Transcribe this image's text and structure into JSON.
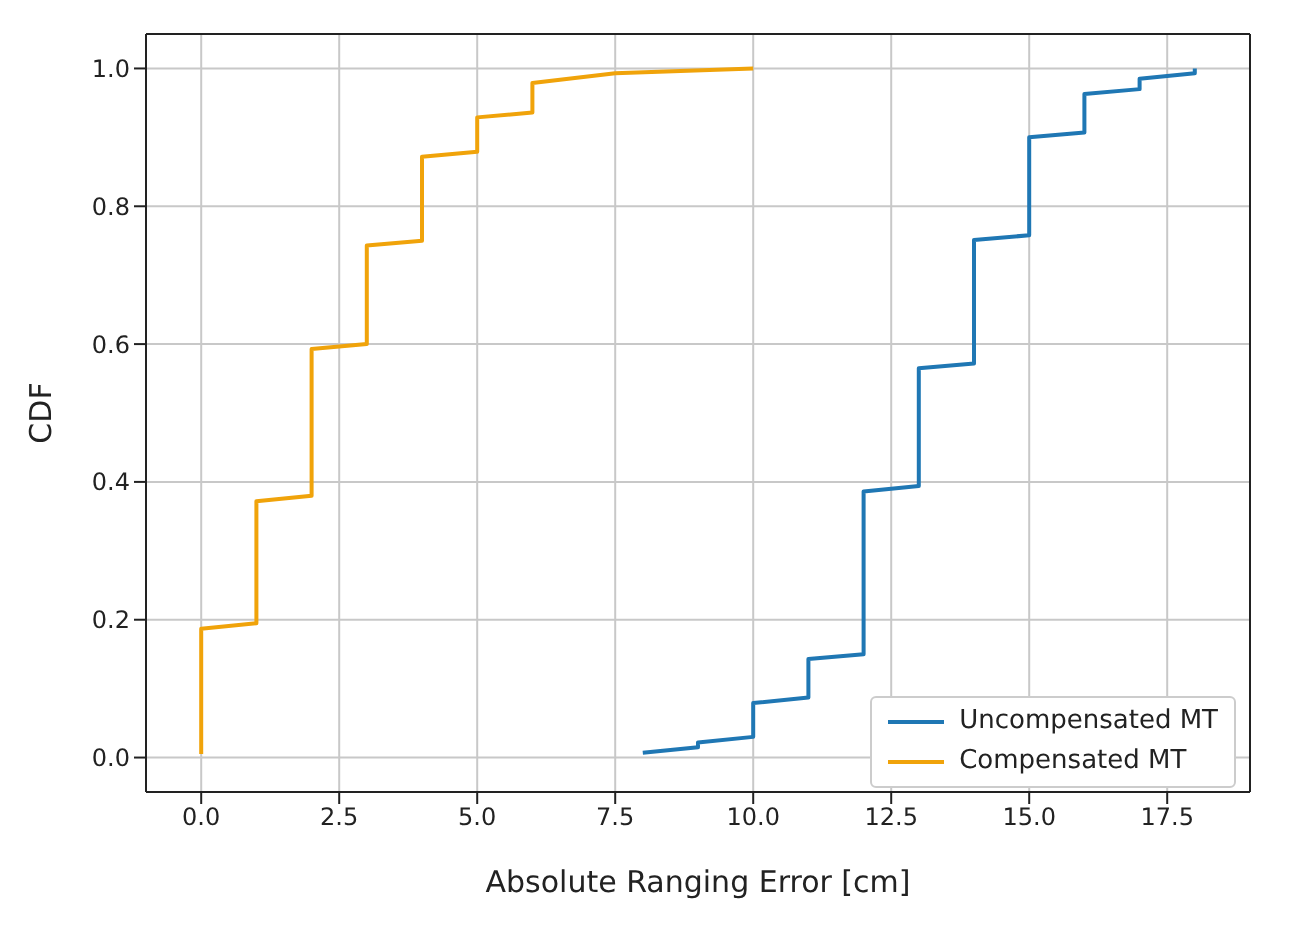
{
  "chart_data": {
    "type": "line",
    "xlabel": "Absolute Ranging Error [cm]",
    "ylabel": "CDF",
    "xlim": [
      -1,
      19
    ],
    "xticks": [
      {
        "value": 0,
        "label": "0.0"
      },
      2.5,
      {
        "value": 5,
        "label": "5.0"
      },
      7.5,
      {
        "value": 10,
        "label": "10.0"
      },
      12.5,
      {
        "value": 15,
        "label": "15.0"
      },
      17.5
    ],
    "ylim": [
      -0.05,
      1.05
    ],
    "yticks": [
      {
        "value": 0,
        "label": "0.0"
      },
      0.2,
      0.4,
      0.6,
      0.8,
      {
        "value": 1,
        "label": "1.0"
      }
    ],
    "grid": true,
    "legend": "bottom right",
    "line_style": "solid",
    "marker": "none",
    "series": [
      {
        "name": "Uncompensated MT",
        "color": "#1f77b4",
        "x": [
          8,
          9,
          9,
          10,
          10,
          11,
          11,
          12,
          12,
          13,
          13,
          14,
          14,
          15,
          15,
          16,
          16,
          17,
          17,
          18,
          18
        ],
        "values": [
          0.007,
          0.015,
          0.022,
          0.03,
          0.079,
          0.087,
          0.143,
          0.15,
          0.386,
          0.394,
          0.565,
          0.572,
          0.751,
          0.758,
          0.9,
          0.907,
          0.963,
          0.97,
          0.985,
          0.993,
          1.0
        ]
      },
      {
        "name": "Compensated MT",
        "color": "#f0a30a",
        "x": [
          0,
          0,
          1,
          1,
          2,
          2,
          3,
          3,
          4,
          4,
          5,
          5,
          6,
          6,
          7.5,
          10
        ],
        "values": [
          0.005,
          0.187,
          0.195,
          0.372,
          0.38,
          0.593,
          0.6,
          0.743,
          0.75,
          0.872,
          0.879,
          0.929,
          0.936,
          0.979,
          0.993,
          1.0
        ]
      }
    ]
  }
}
